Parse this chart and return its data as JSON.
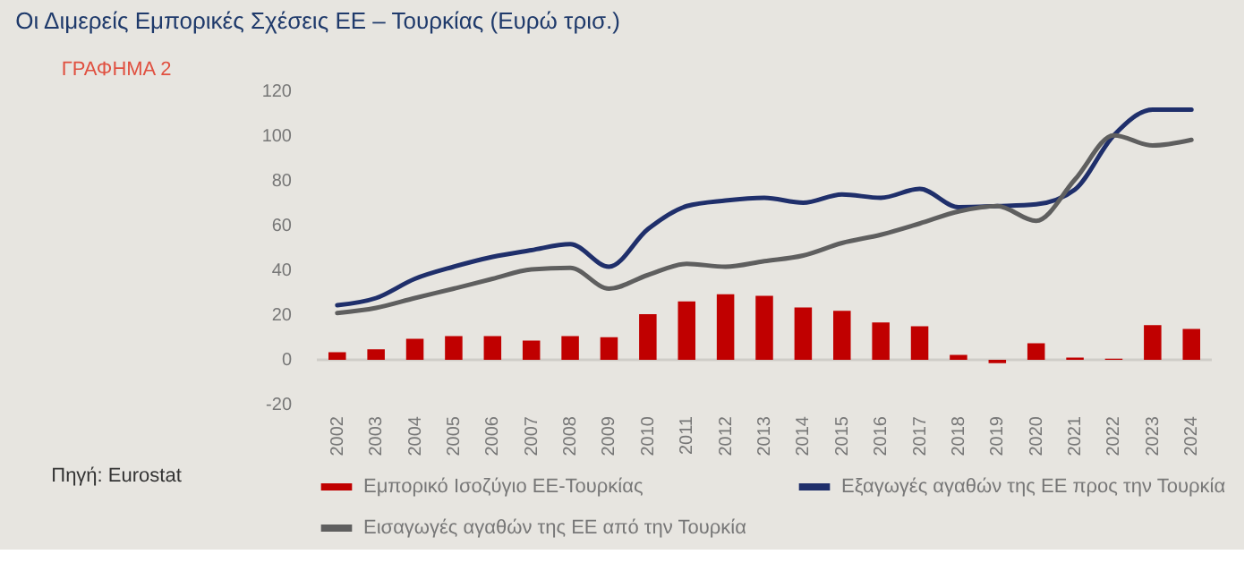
{
  "chart_data": {
    "type": "bar",
    "title": "Οι Διμερείς Εμπορικές Σχέσεις ΕΕ – Τουρκίας (Ευρώ τρισ.)",
    "annotations": [
      "ΓΡΑΦΗΜΑ 2",
      "Πηγή: Eurostat"
    ],
    "categories": [
      "2002",
      "2003",
      "2004",
      "2005",
      "2006",
      "2007",
      "2008",
      "2009",
      "2010",
      "2011",
      "2012",
      "2013",
      "2014",
      "2015",
      "2016",
      "2017",
      "2018",
      "2019",
      "2020",
      "2021",
      "2022",
      "2023",
      "2024"
    ],
    "series": [
      {
        "name": "Εμπορικό Ισοζύγιο ΕΕ-Τουρκίας",
        "color": "#c00000",
        "values": [
          3.4,
          4.7,
          9.4,
          10.6,
          10.6,
          8.6,
          10.6,
          10.1,
          20.4,
          26.1,
          29.3,
          28.6,
          23.4,
          21.9,
          16.7,
          15.0,
          2.2,
          -1.5,
          7.4,
          1.0,
          0.5,
          15.5,
          13.8
        ]
      },
      {
        "name": "Εξαγωγές αγαθών της ΕΕ προς την Τουρκία",
        "type": "line",
        "color": "#1f2f6b",
        "values": [
          24.4,
          27.6,
          36.2,
          41.6,
          46.0,
          49.0,
          51.7,
          41.6,
          58.4,
          68.7,
          71.2,
          72.4,
          70.2,
          73.9,
          72.4,
          76.4,
          68.2,
          68.7,
          69.5,
          76.1,
          100.3,
          111.8,
          111.8
        ]
      },
      {
        "name": "Εισαγωγές αγαθών της ΕΕ από την Τουρκία",
        "type": "line",
        "color": "#5f5f5f",
        "values": [
          20.9,
          23.2,
          27.6,
          31.8,
          36.2,
          40.4,
          41.1,
          31.8,
          37.9,
          42.9,
          41.6,
          44.1,
          46.6,
          52.2,
          55.9,
          60.9,
          66.3,
          68.7,
          62.1,
          80.6,
          100.3,
          95.8,
          98.3
        ]
      }
    ],
    "ylim": [
      -20,
      120
    ],
    "yticks": [
      -20,
      0,
      20,
      40,
      60,
      80,
      100,
      120
    ],
    "ref_lines": [
      {
        "axis": "y",
        "value": 0,
        "color": "#cfcdc8"
      }
    ],
    "grid": false,
    "legend": "bottom"
  }
}
